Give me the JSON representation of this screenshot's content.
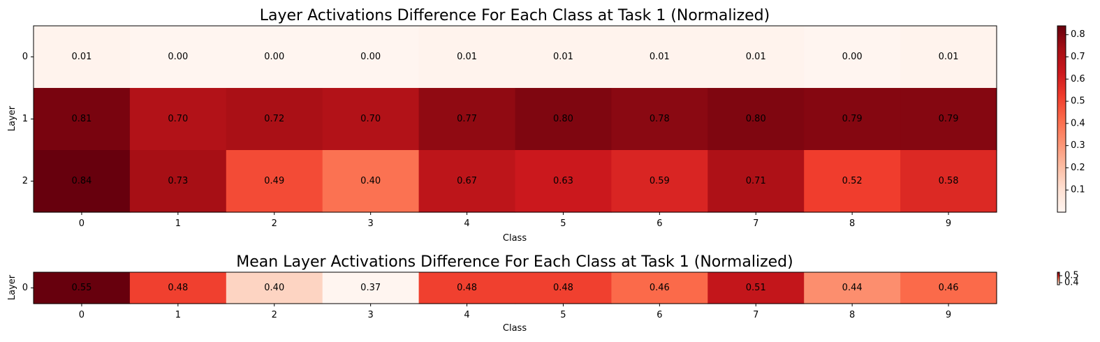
{
  "chart_data": [
    {
      "type": "heatmap",
      "title": "Layer Activations Difference For Each Class at Task 1 (Normalized)",
      "xlabel": "Class",
      "ylabel": "Layer",
      "x": [
        "0",
        "1",
        "2",
        "3",
        "4",
        "5",
        "6",
        "7",
        "8",
        "9"
      ],
      "y": [
        "0",
        "1",
        "2"
      ],
      "values": [
        [
          0.01,
          0.0,
          0.0,
          0.0,
          0.01,
          0.01,
          0.01,
          0.01,
          0.0,
          0.01
        ],
        [
          0.81,
          0.7,
          0.72,
          0.7,
          0.77,
          0.8,
          0.78,
          0.8,
          0.79,
          0.79
        ],
        [
          0.84,
          0.73,
          0.49,
          0.4,
          0.67,
          0.63,
          0.59,
          0.71,
          0.52,
          0.58
        ]
      ],
      "value_labels": [
        [
          "0.01",
          "0.00",
          "0.00",
          "0.00",
          "0.01",
          "0.01",
          "0.01",
          "0.01",
          "0.00",
          "0.01"
        ],
        [
          "0.81",
          "0.70",
          "0.72",
          "0.70",
          "0.77",
          "0.80",
          "0.78",
          "0.80",
          "0.79",
          "0.79"
        ],
        [
          "0.84",
          "0.73",
          "0.49",
          "0.40",
          "0.67",
          "0.63",
          "0.59",
          "0.71",
          "0.52",
          "0.58"
        ]
      ],
      "colormap": "Reds",
      "colorbar": {
        "vmin": 0.0,
        "vmax": 0.84,
        "ticks": [
          0.1,
          0.2,
          0.3,
          0.4,
          0.5,
          0.6,
          0.7,
          0.8
        ],
        "tick_labels": [
          "0.1",
          "0.2",
          "0.3",
          "0.4",
          "0.5",
          "0.6",
          "0.7",
          "0.8"
        ]
      }
    },
    {
      "type": "heatmap",
      "title": "Mean Layer Activations Difference For Each Class at Task 1 (Normalized)",
      "xlabel": "Class",
      "ylabel": "Layer",
      "x": [
        "0",
        "1",
        "2",
        "3",
        "4",
        "5",
        "6",
        "7",
        "8",
        "9"
      ],
      "y": [
        "0"
      ],
      "values": [
        [
          0.55,
          0.48,
          0.4,
          0.37,
          0.48,
          0.48,
          0.46,
          0.51,
          0.44,
          0.46
        ]
      ],
      "value_labels": [
        [
          "0.55",
          "0.48",
          "0.40",
          "0.37",
          "0.48",
          "0.48",
          "0.46",
          "0.51",
          "0.44",
          "0.46"
        ]
      ],
      "colormap": "Reds",
      "colorbar": {
        "vmin": 0.37,
        "vmax": 0.55,
        "ticks": [
          0.4,
          0.5
        ],
        "tick_labels": [
          "0.4",
          "0.5"
        ]
      }
    }
  ]
}
